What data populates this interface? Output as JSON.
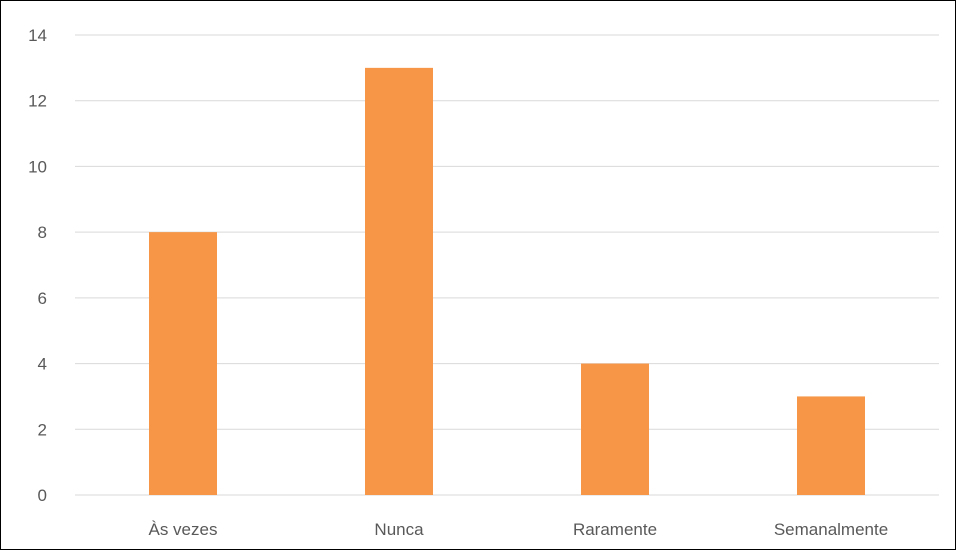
{
  "chart_data": {
    "type": "bar",
    "title": "",
    "xlabel": "",
    "ylabel": "",
    "categories": [
      "Às vezes",
      "Nunca",
      "Raramente",
      "Semanalmente"
    ],
    "values": [
      8,
      13,
      4,
      3
    ],
    "ylim": [
      0,
      14
    ],
    "yticks": [
      0,
      2,
      4,
      6,
      8,
      10,
      12,
      14
    ],
    "grid": true,
    "legend": "none",
    "bar_color": "#F79646",
    "grid_color": "#D9D9D9",
    "text_color": "#595959"
  }
}
